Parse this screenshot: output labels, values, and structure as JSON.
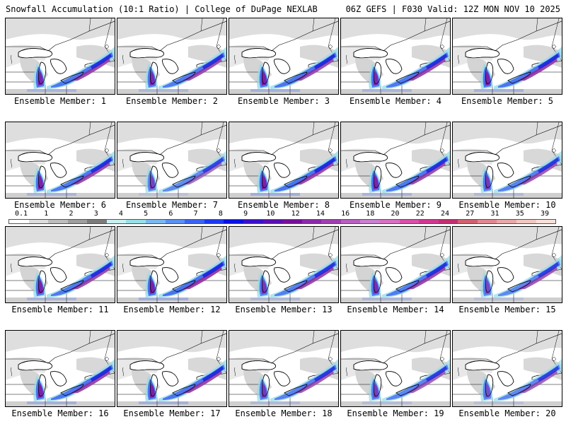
{
  "header": {
    "left": "Snowfall Accumulation (10:1 Ratio) | College of DuPage NEXLAB",
    "right": "06Z GEFS | F030 Valid: 12Z MON NOV 10 2025"
  },
  "member_label_prefix": "Ensemble Member: ",
  "members": [
    {
      "id": "1",
      "intensity": 0.75,
      "lake_michigan_band": 0.9,
      "eastern_band": 0.85
    },
    {
      "id": "2",
      "intensity": 0.7,
      "lake_michigan_band": 0.8,
      "eastern_band": 0.8
    },
    {
      "id": "3",
      "intensity": 0.8,
      "lake_michigan_band": 1.0,
      "eastern_band": 0.8
    },
    {
      "id": "4",
      "intensity": 0.75,
      "lake_michigan_band": 0.8,
      "eastern_band": 0.85
    },
    {
      "id": "5",
      "intensity": 0.8,
      "lake_michigan_band": 0.9,
      "eastern_band": 0.9
    },
    {
      "id": "6",
      "intensity": 0.75,
      "lake_michigan_band": 0.95,
      "eastern_band": 0.8
    },
    {
      "id": "7",
      "intensity": 0.45,
      "lake_michigan_band": 0.5,
      "eastern_band": 0.5
    },
    {
      "id": "8",
      "intensity": 0.85,
      "lake_michigan_band": 1.0,
      "eastern_band": 0.85
    },
    {
      "id": "9",
      "intensity": 0.75,
      "lake_michigan_band": 0.9,
      "eastern_band": 0.8
    },
    {
      "id": "10",
      "intensity": 0.6,
      "lake_michigan_band": 0.6,
      "eastern_band": 0.7
    },
    {
      "id": "11",
      "intensity": 0.75,
      "lake_michigan_band": 0.95,
      "eastern_band": 0.8
    },
    {
      "id": "12",
      "intensity": 0.85,
      "lake_michigan_band": 0.95,
      "eastern_band": 0.95
    },
    {
      "id": "13",
      "intensity": 0.65,
      "lake_michigan_band": 0.6,
      "eastern_band": 0.85
    },
    {
      "id": "14",
      "intensity": 0.7,
      "lake_michigan_band": 0.7,
      "eastern_band": 0.85
    },
    {
      "id": "15",
      "intensity": 0.5,
      "lake_michigan_band": 0.4,
      "eastern_band": 0.7
    },
    {
      "id": "16",
      "intensity": 0.8,
      "lake_michigan_band": 0.95,
      "eastern_band": 0.85
    },
    {
      "id": "17",
      "intensity": 0.8,
      "lake_michigan_band": 0.95,
      "eastern_band": 0.85
    },
    {
      "id": "18",
      "intensity": 0.6,
      "lake_michigan_band": 0.6,
      "eastern_band": 0.7
    },
    {
      "id": "19",
      "intensity": 0.55,
      "lake_michigan_band": 0.55,
      "eastern_band": 0.6
    },
    {
      "id": "20",
      "intensity": 0.5,
      "lake_michigan_band": 0.3,
      "eastern_band": 0.6
    }
  ],
  "colorbar": {
    "ticks": [
      "0.1",
      "1",
      "2",
      "3",
      "4",
      "5",
      "6",
      "7",
      "8",
      "9",
      "10",
      "12",
      "14",
      "16",
      "18",
      "20",
      "22",
      "24",
      "27",
      "31",
      "35",
      "39"
    ],
    "colors": [
      "#ffffff",
      "#dcdcdc",
      "#bdbdbd",
      "#9e9e9e",
      "#7c7c7c",
      "#c8f0f0",
      "#98e0e8",
      "#7cb8f0",
      "#5a90f0",
      "#3a64f0",
      "#1c38f0",
      "#0a10e0",
      "#3a10c8",
      "#5a10b0",
      "#761098",
      "#8a2aa8",
      "#a040b0",
      "#b860c0",
      "#c880d0",
      "#d870c0",
      "#d850a8",
      "#d03890",
      "#c03070",
      "#d06070",
      "#e08890",
      "#e8a8a8",
      "#f0c8c0",
      "#f8e0d8"
    ]
  }
}
